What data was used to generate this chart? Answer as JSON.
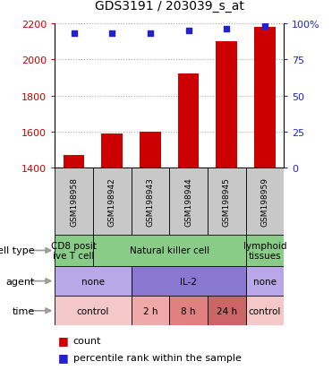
{
  "title": "GDS3191 / 203039_s_at",
  "samples": [
    "GSM198958",
    "GSM198942",
    "GSM198943",
    "GSM198944",
    "GSM198945",
    "GSM198959"
  ],
  "counts": [
    1470,
    1590,
    1600,
    1920,
    2100,
    2180
  ],
  "percentile_ranks": [
    93,
    93,
    93,
    95,
    96,
    98
  ],
  "ylim_left": [
    1400,
    2200
  ],
  "ylim_right": [
    0,
    100
  ],
  "yticks_left": [
    1400,
    1600,
    1800,
    2000,
    2200
  ],
  "yticks_right": [
    0,
    25,
    50,
    75,
    100
  ],
  "bar_color": "#cc0000",
  "dot_color": "#2222cc",
  "bar_bottom": 1400,
  "sample_box_color": "#c8c8c8",
  "cell_types": [
    {
      "label": "CD8 posit\nive T cell",
      "span": [
        0,
        1
      ],
      "color": "#88cc88"
    },
    {
      "label": "Natural killer cell",
      "span": [
        1,
        5
      ],
      "color": "#88cc88"
    },
    {
      "label": "lymphoid\ntissues",
      "span": [
        5,
        6
      ],
      "color": "#88cc88"
    }
  ],
  "agents": [
    {
      "label": "none",
      "span": [
        0,
        2
      ],
      "color": "#b8a8e8"
    },
    {
      "label": "IL-2",
      "span": [
        2,
        5
      ],
      "color": "#8878d0"
    },
    {
      "label": "none",
      "span": [
        5,
        6
      ],
      "color": "#b8a8e8"
    }
  ],
  "times": [
    {
      "label": "control",
      "span": [
        0,
        2
      ],
      "color": "#f4c8c8"
    },
    {
      "label": "2 h",
      "span": [
        2,
        3
      ],
      "color": "#f0a8a8"
    },
    {
      "label": "8 h",
      "span": [
        3,
        4
      ],
      "color": "#e08080"
    },
    {
      "label": "24 h",
      "span": [
        4,
        5
      ],
      "color": "#cc6666"
    },
    {
      "label": "control",
      "span": [
        5,
        6
      ],
      "color": "#f4c8c8"
    }
  ],
  "row_labels": [
    "cell type",
    "agent",
    "time"
  ],
  "legend_red": "count",
  "legend_blue": "percentile rank within the sample",
  "tick_color_left": "#cc0000",
  "tick_color_right": "#2222cc",
  "grid_color": "#aaaaaa"
}
